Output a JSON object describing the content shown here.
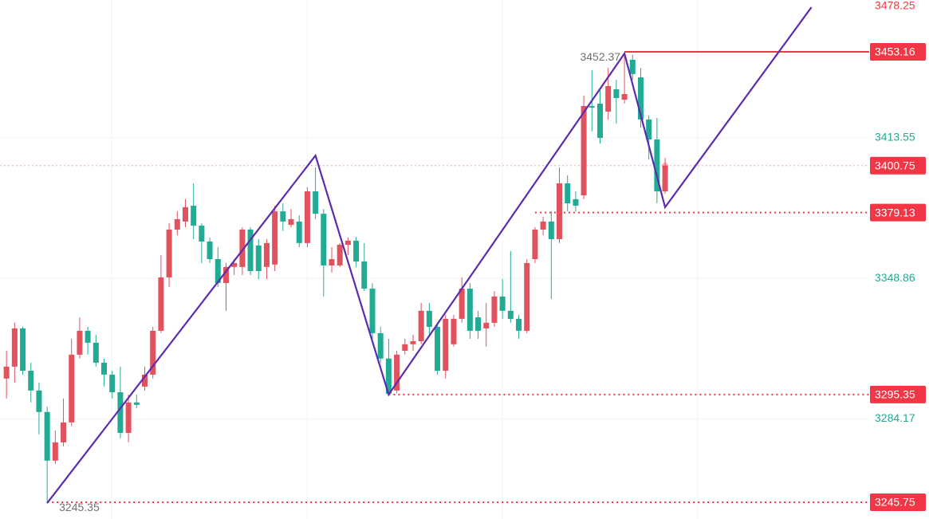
{
  "chart_data": {
    "type": "candlestick",
    "up_color": "#e0525e",
    "down_color": "#22ab94",
    "x": [
      0,
      1,
      2,
      3,
      4,
      5,
      6,
      7,
      8,
      9,
      10,
      11,
      12,
      13,
      14,
      15,
      16,
      17,
      18,
      19,
      20,
      21,
      22,
      23,
      24,
      25,
      26,
      27,
      28,
      29,
      30,
      31,
      32,
      33,
      34,
      35,
      36,
      37,
      38,
      39,
      40,
      41,
      42,
      43,
      44,
      45,
      46,
      47,
      48,
      49,
      50,
      51,
      52,
      53,
      54,
      55,
      56,
      57,
      58,
      59,
      60,
      61,
      62,
      63,
      64,
      65,
      66,
      67,
      68,
      69,
      70,
      71,
      72,
      73,
      74,
      75,
      76,
      77,
      78,
      79,
      80,
      81
    ],
    "open": [
      3302.7,
      3308.2,
      3325.8,
      3306.3,
      3297.2,
      3287.3,
      3264.9,
      3273.3,
      3282.5,
      3313.7,
      3324.7,
      3319.2,
      3310.0,
      3304.5,
      3296.4,
      3277.7,
      3291.7,
      3299.0,
      3304.5,
      3324.7,
      3349.3,
      3371.3,
      3375.0,
      3382.3,
      3373.1,
      3365.8,
      3357.7,
      3346.7,
      3354.1,
      3354.1,
      3371.3,
      3364.0,
      3354.1,
      3355.2,
      3379.7,
      3373.5,
      3375.0,
      3365.1,
      3388.9,
      3378.6,
      3354.8,
      3354.8,
      3364.3,
      3366.2,
      3356.6,
      3344.1,
      3323.6,
      3311.9,
      3297.2,
      3315.5,
      3318.5,
      3319.9,
      3333.9,
      3326.5,
      3306.3,
      3318.5,
      3330.2,
      3344.1,
      3330.9,
      3325.8,
      3328.4,
      3340.5,
      3333.9,
      3330.2,
      3324.7,
      3357.7,
      3371.3,
      3375.0,
      3366.9,
      3392.6,
      3385.3,
      3387.1,
      3428.2,
      3429.3,
      3425.6,
      3435.9,
      3431.1,
      3449.5,
      3441.4,
      3422.0,
      3412.8,
      3388.9
    ],
    "high": [
      3315.5,
      3328.4,
      3326.5,
      3310.0,
      3300.8,
      3289.8,
      3278.8,
      3293.5,
      3321.0,
      3330.9,
      3326.5,
      3322.9,
      3311.9,
      3306.3,
      3308.2,
      3295.3,
      3295.3,
      3308.2,
      3326.5,
      3359.6,
      3374.2,
      3379.7,
      3385.3,
      3392.6,
      3374.2,
      3367.6,
      3363.2,
      3355.9,
      3357.7,
      3372.4,
      3372.4,
      3366.9,
      3366.9,
      3382.3,
      3383.4,
      3380.8,
      3377.9,
      3390.8,
      3399.9,
      3380.8,
      3363.2,
      3365.1,
      3367.6,
      3368.0,
      3365.1,
      3346.7,
      3326.5,
      3321.0,
      3315.5,
      3321.0,
      3322.9,
      3337.5,
      3337.5,
      3328.4,
      3332.0,
      3332.0,
      3349.3,
      3346.7,
      3333.9,
      3337.5,
      3343.0,
      3348.5,
      3361.4,
      3332.0,
      3357.7,
      3372.4,
      3377.2,
      3379.7,
      3399.9,
      3396.3,
      3388.9,
      3433.0,
      3444.7,
      3436.6,
      3445.8,
      3440.3,
      3452.37,
      3451.8,
      3445.8,
      3423.8,
      3422.7,
      3404.3
    ],
    "low": [
      3293.5,
      3300.8,
      3304.5,
      3291.7,
      3277.0,
      3245.35,
      3263.4,
      3271.5,
      3280.7,
      3311.9,
      3313.7,
      3308.2,
      3299.0,
      3293.5,
      3275.2,
      3273.3,
      3289.1,
      3297.2,
      3302.7,
      3323.6,
      3344.9,
      3368.7,
      3372.4,
      3366.9,
      3355.9,
      3355.9,
      3344.9,
      3333.9,
      3350.4,
      3350.4,
      3350.4,
      3348.5,
      3348.5,
      3352.2,
      3370.6,
      3372.4,
      3363.2,
      3363.2,
      3376.1,
      3340.5,
      3351.5,
      3354.1,
      3359.6,
      3354.1,
      3343.0,
      3321.0,
      3310.0,
      3295.35,
      3296.0,
      3313.7,
      3315.5,
      3318.5,
      3322.9,
      3304.5,
      3302.7,
      3317.4,
      3328.4,
      3321.0,
      3321.0,
      3317.4,
      3326.5,
      3330.2,
      3328.4,
      3321.0,
      3323.6,
      3355.9,
      3368.7,
      3339.4,
      3365.1,
      3379.7,
      3379.7,
      3385.3,
      3416.5,
      3410.9,
      3421.9,
      3420.1,
      3429.3,
      3440.3,
      3418.3,
      3403.6,
      3383.4,
      3387.8
    ],
    "close": [
      3308.2,
      3325.8,
      3306.3,
      3297.2,
      3287.3,
      3264.9,
      3273.3,
      3282.5,
      3313.7,
      3324.7,
      3319.2,
      3310.0,
      3304.5,
      3296.4,
      3277.7,
      3291.7,
      3290.6,
      3304.5,
      3324.7,
      3349.3,
      3371.3,
      3376.1,
      3381.6,
      3373.1,
      3365.8,
      3357.7,
      3346.7,
      3354.1,
      3355.9,
      3371.3,
      3352.2,
      3352.2,
      3365.1,
      3379.7,
      3375.0,
      3376.1,
      3365.1,
      3388.9,
      3378.6,
      3354.8,
      3357.7,
      3364.3,
      3366.2,
      3356.6,
      3344.1,
      3323.6,
      3311.9,
      3295.7,
      3313.7,
      3318.5,
      3319.9,
      3333.9,
      3326.5,
      3306.3,
      3330.2,
      3330.2,
      3344.1,
      3324.7,
      3324.7,
      3328.4,
      3340.5,
      3333.9,
      3330.2,
      3324.7,
      3355.9,
      3371.3,
      3375.0,
      3366.9,
      3392.6,
      3383.4,
      3382.3,
      3428.2,
      3427.5,
      3413.5,
      3437.4,
      3431.9,
      3433.7,
      3442.9,
      3422.0,
      3412.8,
      3388.9,
      3400.75
    ],
    "xlim": [
      -0.8,
      106.1
    ],
    "ylim": [
      3238.03,
      3477.02
    ],
    "yticks": [
      3478.25,
      3413.55,
      3348.86,
      3284.17
    ],
    "ytick_colors": [
      "#f23645",
      "#22ab94",
      "#22ab94",
      "#22ab94"
    ],
    "grid": true,
    "trend_line": {
      "color": "#5b2bb0",
      "x": [
        5,
        38,
        47,
        76,
        81,
        99
      ],
      "values": [
        3245.35,
        3405.4,
        3295.35,
        3452.37,
        3381.6,
        3473.7
      ]
    },
    "levels": [
      {
        "value": 3453.16,
        "x_start": 76,
        "style": "solid",
        "color": "#f23645"
      },
      {
        "value": 3379.13,
        "x_start": 65,
        "style": "dotted",
        "color": "#f23645"
      },
      {
        "value": 3295.35,
        "x_start": 47,
        "style": "dotted",
        "color": "#f23645"
      },
      {
        "value": 3245.75,
        "x_start": 5,
        "style": "dotted",
        "color": "#f23645"
      }
    ],
    "last_price": {
      "value": 3400.75,
      "color": "#f23645"
    },
    "annotations": [
      {
        "x": 76,
        "value": 3452.37
      },
      {
        "x": 5,
        "value": 3245.35
      }
    ]
  }
}
